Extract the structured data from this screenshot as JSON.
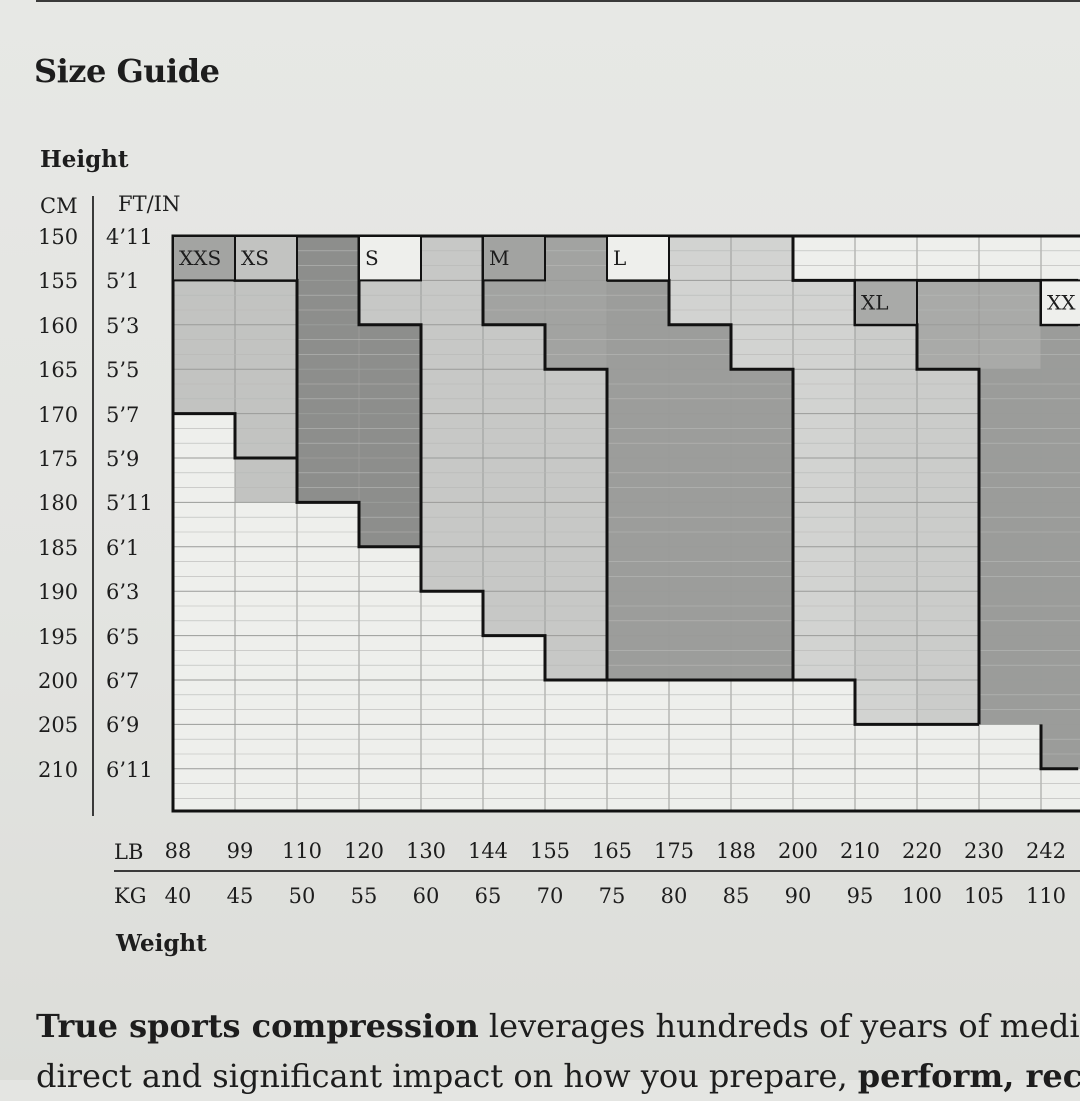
{
  "title": "Size Guide",
  "height_label": "Height",
  "height_units": {
    "cm": "CM",
    "ft_in": "FT/IN"
  },
  "height_rows": [
    {
      "cm": "150",
      "ft": "4’11"
    },
    {
      "cm": "155",
      "ft": "5’1"
    },
    {
      "cm": "160",
      "ft": "5’3"
    },
    {
      "cm": "165",
      "ft": "5’5"
    },
    {
      "cm": "170",
      "ft": "5’7"
    },
    {
      "cm": "175",
      "ft": "5’9"
    },
    {
      "cm": "180",
      "ft": "5’11"
    },
    {
      "cm": "185",
      "ft": "6’1"
    },
    {
      "cm": "190",
      "ft": "6’3"
    },
    {
      "cm": "195",
      "ft": "6’5"
    },
    {
      "cm": "200",
      "ft": "6’7"
    },
    {
      "cm": "205",
      "ft": "6’9"
    },
    {
      "cm": "210",
      "ft": "6’11"
    }
  ],
  "weight_label": "Weight",
  "weight_units": {
    "lb": "LB",
    "kg": "KG"
  },
  "weight_lb": [
    "88",
    "99",
    "110",
    "120",
    "130",
    "144",
    "155",
    "165",
    "175",
    "188",
    "200",
    "210",
    "220",
    "230",
    "242"
  ],
  "weight_kg": [
    "40",
    "45",
    "50",
    "55",
    "60",
    "65",
    "70",
    "75",
    "80",
    "85",
    "90",
    "95",
    "100",
    "105",
    "110"
  ],
  "chart_data": {
    "type": "heatmap",
    "x_axis": "Weight (kg)",
    "y_axis": "Height (cm)",
    "x_columns_kg": [
      40,
      45,
      50,
      55,
      60,
      65,
      70,
      75,
      80,
      85,
      90,
      95,
      100,
      105,
      110
    ],
    "y_rows_cm": [
      150,
      155,
      160,
      165,
      170,
      175,
      180,
      185,
      190,
      195,
      200,
      205,
      210
    ],
    "colors": {
      "XXS": "#a3a4a2",
      "XS": "#c2c3c1",
      "S": "#8d8e8c",
      "M": "#bfc0bd",
      "L": "#9c9d9b",
      "XL": "#cbccca",
      "XXL": "#9b9c9a",
      "blank": "#eeefec",
      "grid_line": "#9a9b99",
      "border": "#111111"
    },
    "sizes": [
      {
        "name": "XXS",
        "label": "XXS",
        "color": "#a3a4a2",
        "columns": [
          {
            "kg": 40,
            "from_cm": 150,
            "to_cm": 165
          }
        ]
      },
      {
        "name": "XS",
        "label": "XS",
        "color": "#c2c3c1",
        "columns": [
          {
            "kg": 40,
            "from_cm": 155,
            "to_cm": 165
          },
          {
            "kg": 45,
            "from_cm": 150,
            "to_cm": 175
          }
        ]
      },
      {
        "name": "S-dark",
        "label": "",
        "color": "#8d8e8c",
        "columns": [
          {
            "kg": 50,
            "from_cm": 150,
            "to_cm": 175
          },
          {
            "kg": 55,
            "from_cm": 160,
            "to_cm": 180
          }
        ]
      },
      {
        "name": "S",
        "label": "S",
        "color": "#c7c8c6",
        "columns": [
          {
            "kg": 55,
            "from_cm": 150,
            "to_cm": 155
          },
          {
            "kg": 60,
            "from_cm": 150,
            "to_cm": 185
          },
          {
            "kg": 65,
            "from_cm": 160,
            "to_cm": 190
          },
          {
            "kg": 70,
            "from_cm": 165,
            "to_cm": 195
          }
        ]
      },
      {
        "name": "M",
        "label": "M",
        "color": "#a2a3a1",
        "columns": [
          {
            "kg": 65,
            "from_cm": 150,
            "to_cm": 155
          },
          {
            "kg": 70,
            "from_cm": 150,
            "to_cm": 160
          },
          {
            "kg": 75,
            "from_cm": 150,
            "to_cm": 150
          }
        ]
      },
      {
        "name": "L",
        "label": "L",
        "color": "#9c9d9b",
        "columns": [
          {
            "kg": 75,
            "from_cm": 155,
            "to_cm": 195
          },
          {
            "kg": 80,
            "from_cm": 160,
            "to_cm": 195
          },
          {
            "kg": 85,
            "from_cm": 165,
            "to_cm": 195
          }
        ]
      },
      {
        "name": "L-light",
        "label": "",
        "color": "#d2d3d1",
        "columns": [
          {
            "kg": 80,
            "from_cm": 150,
            "to_cm": 155
          },
          {
            "kg": 85,
            "from_cm": 150,
            "to_cm": 160
          },
          {
            "kg": 90,
            "from_cm": 155,
            "to_cm": 195
          },
          {
            "kg": 95,
            "from_cm": 200,
            "to_cm": 200
          }
        ]
      },
      {
        "name": "XL",
        "label": "XL",
        "color": "#a9aaa8",
        "columns": [
          {
            "kg": 95,
            "from_cm": 155,
            "to_cm": 155
          },
          {
            "kg": 100,
            "from_cm": 155,
            "to_cm": 160
          },
          {
            "kg": 105,
            "from_cm": 155,
            "to_cm": 160
          }
        ]
      },
      {
        "name": "XL-light",
        "label": "",
        "color": "#cbccca",
        "columns": [
          {
            "kg": 95,
            "from_cm": 160,
            "to_cm": 195
          },
          {
            "kg": 100,
            "from_cm": 165,
            "to_cm": 200
          }
        ]
      },
      {
        "name": "XXL",
        "label": "XX",
        "color": "#9b9c9a",
        "columns": [
          {
            "kg": 105,
            "from_cm": 165,
            "to_cm": 200
          },
          {
            "kg": 110,
            "from_cm": 160,
            "to_cm": 205
          }
        ]
      }
    ]
  },
  "paragraph": {
    "line1_bold": "True sports compression",
    "line1_rest": " leverages hundreds of years of medical",
    "line2_start": "direct and significant impact on how you prepare, ",
    "line2_bold": "perform, recov"
  }
}
